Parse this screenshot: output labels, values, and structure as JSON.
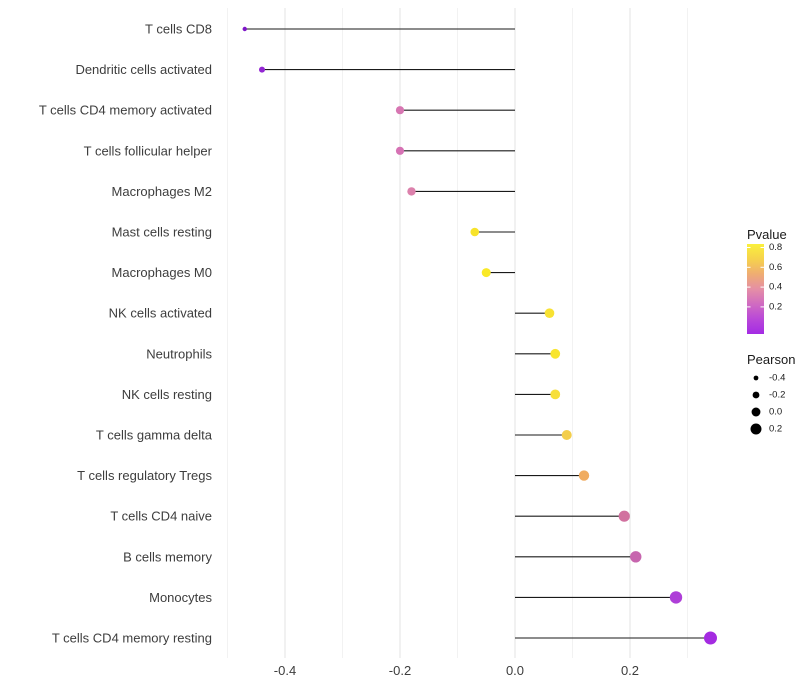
{
  "chart_data": {
    "type": "lollipop",
    "orientation": "horizontal",
    "title": "",
    "xlabel": "",
    "ylabel": "",
    "grid": "vertical-major-and-minor",
    "legend_position": "right",
    "x_tick_labels": [
      "-0.4",
      "-0.2",
      "0.0",
      "0.2"
    ],
    "x_tick_values": [
      -0.4,
      -0.2,
      0.0,
      0.2
    ],
    "x_minor_values": [
      -0.5,
      -0.3,
      -0.1,
      0.1,
      0.3
    ],
    "xlim": [
      -0.51,
      0.355
    ],
    "points": [
      {
        "category": "T cells CD8",
        "pearson": -0.47,
        "pvalue_approx": 0.07,
        "color": "#7E16C8",
        "radius": 2.2
      },
      {
        "category": "Dendritic cells activated",
        "pearson": -0.44,
        "pvalue_approx": 0.12,
        "color": "#9326D3",
        "radius": 3.0
      },
      {
        "category": "T cells CD4 memory activated",
        "pearson": -0.2,
        "pvalue_approx": 0.38,
        "color": "#D776B2",
        "radius": 4.1
      },
      {
        "category": "T cells follicular helper",
        "pearson": -0.2,
        "pvalue_approx": 0.37,
        "color": "#D672B4",
        "radius": 4.1
      },
      {
        "category": "Macrophages M2",
        "pearson": -0.18,
        "pvalue_approx": 0.42,
        "color": "#DC81AC",
        "radius": 4.2
      },
      {
        "category": "Mast cells resting",
        "pearson": -0.07,
        "pvalue_approx": 0.78,
        "color": "#F7E32B",
        "radius": 4.3
      },
      {
        "category": "Macrophages M0",
        "pearson": -0.05,
        "pvalue_approx": 0.83,
        "color": "#F9E927",
        "radius": 4.5
      },
      {
        "category": "NK cells activated",
        "pearson": 0.06,
        "pvalue_approx": 0.79,
        "color": "#F8E233",
        "radius": 4.8
      },
      {
        "category": "Neutrophils",
        "pearson": 0.07,
        "pvalue_approx": 0.81,
        "color": "#F8E52E",
        "radius": 4.9
      },
      {
        "category": "NK cells resting",
        "pearson": 0.07,
        "pvalue_approx": 0.76,
        "color": "#F7DF3A",
        "radius": 4.9
      },
      {
        "category": "T cells gamma delta",
        "pearson": 0.09,
        "pvalue_approx": 0.68,
        "color": "#F3CE4B",
        "radius": 5.0
      },
      {
        "category": "T cells regulatory  Tregs",
        "pearson": 0.12,
        "pvalue_approx": 0.57,
        "color": "#F0AC61",
        "radius": 5.2
      },
      {
        "category": "T cells CD4 naive",
        "pearson": 0.19,
        "pvalue_approx": 0.4,
        "color": "#D1719F",
        "radius": 5.6
      },
      {
        "category": "B cells memory",
        "pearson": 0.21,
        "pvalue_approx": 0.34,
        "color": "#C765AE",
        "radius": 5.7
      },
      {
        "category": "Monocytes",
        "pearson": 0.28,
        "pvalue_approx": 0.17,
        "color": "#AE3ED8",
        "radius": 6.2
      },
      {
        "category": "T cells CD4 memory resting",
        "pearson": 0.34,
        "pvalue_approx": 0.12,
        "color": "#A42BE1",
        "radius": 6.5
      }
    ],
    "legend": {
      "pvalue": {
        "title": "Pvalue",
        "tick_labels": [
          "0.8",
          "0.6",
          "0.4",
          "0.2"
        ],
        "gradient_stops_top_to_bottom": [
          "#FAF03C",
          "#F6D24C",
          "#EFAD72",
          "#E58FA5",
          "#D06BC1",
          "#B948D8",
          "#A42BE4"
        ]
      },
      "pearson": {
        "title": "Pearson",
        "items": [
          {
            "label": "-0.4",
            "value": -0.4
          },
          {
            "label": "-0.2",
            "value": -0.2
          },
          {
            "label": "0.0",
            "value": 0.0
          },
          {
            "label": "0.2",
            "value": 0.2
          }
        ]
      }
    },
    "colors": {
      "stem": "#1A1A1A",
      "grid_major": "#E3E3E3",
      "grid_minor": "#F2F2F2",
      "axis_text": "#3D3D3D",
      "background": "#FFFFFF"
    }
  }
}
